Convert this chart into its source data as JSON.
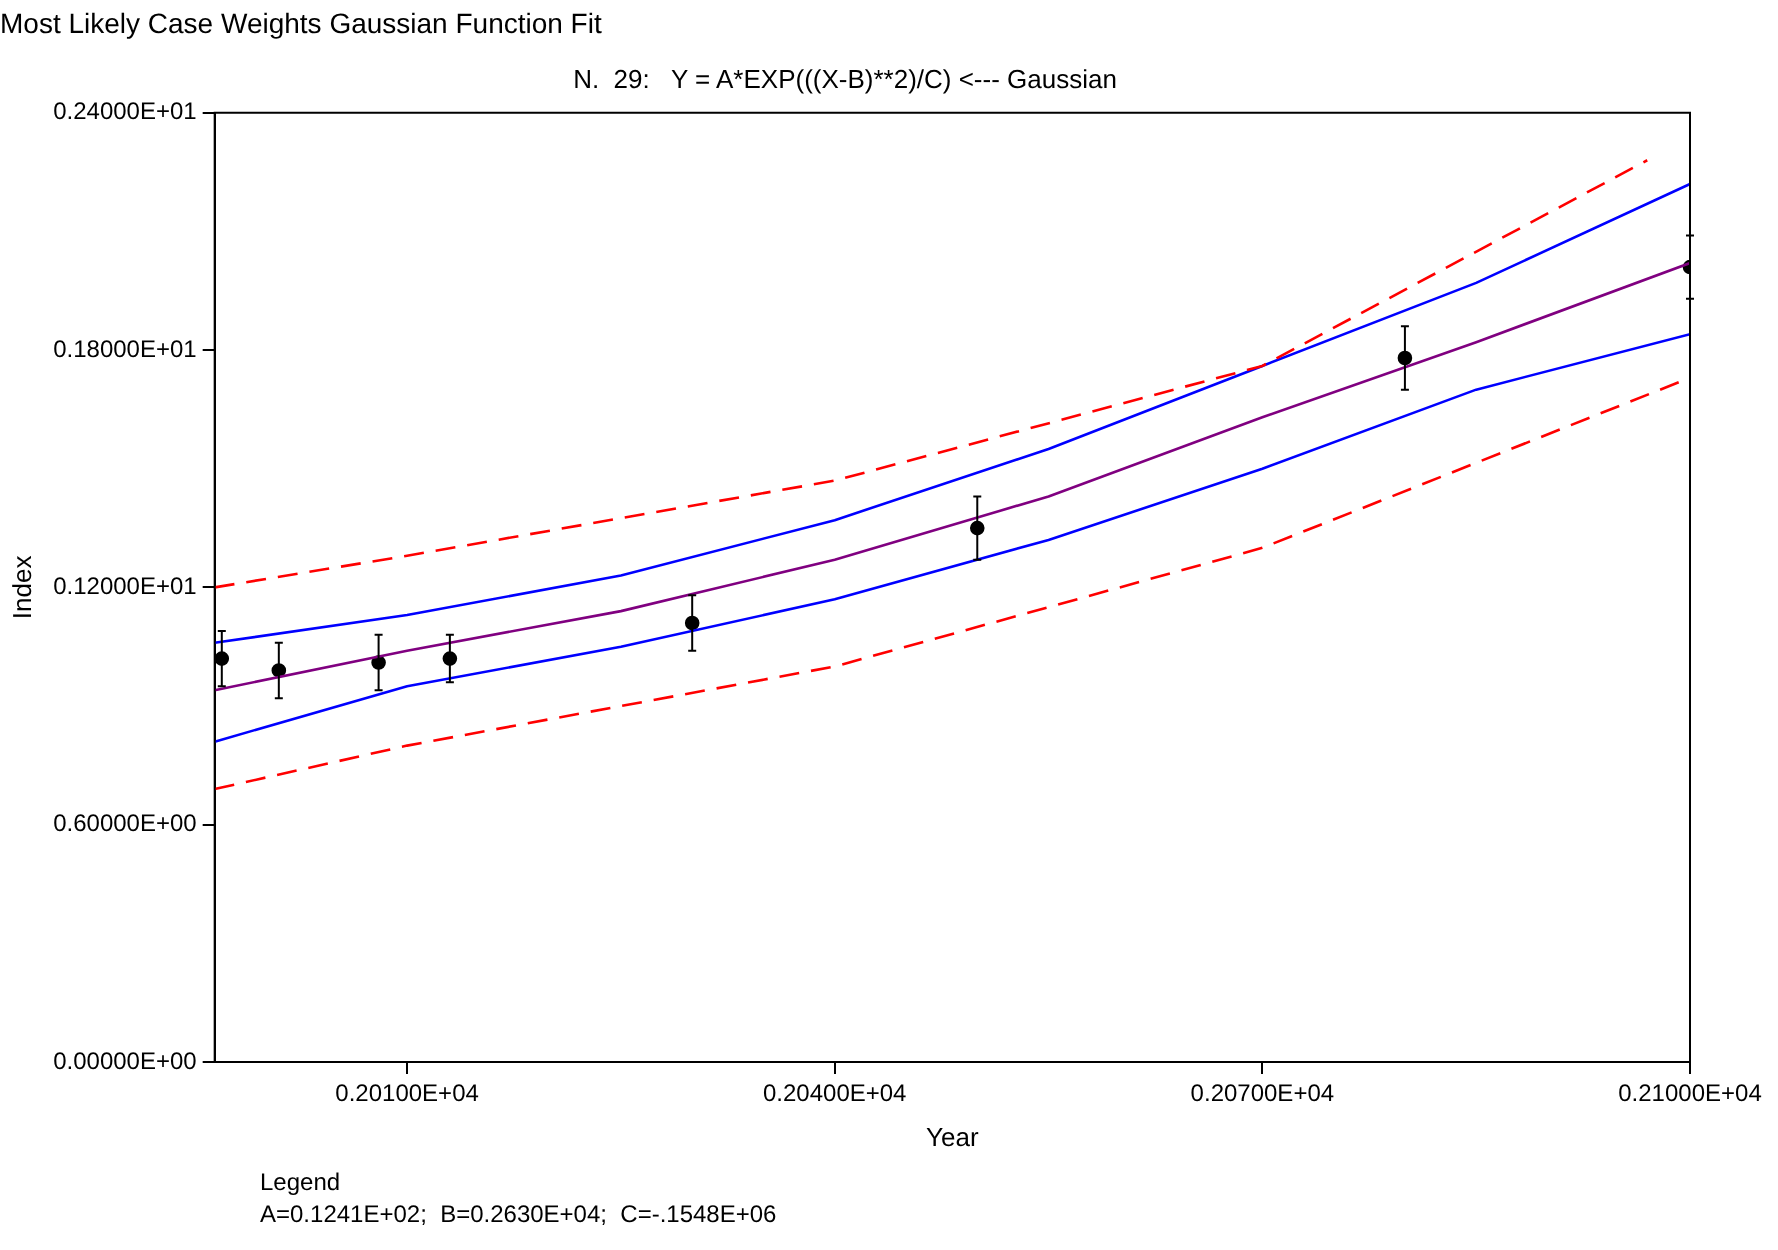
{
  "chart_data": {
    "type": "line",
    "title": "Most Likely Case Weights Gaussian Function Fit",
    "subtitle": "N.  29:   Y = A*EXP(((X-B)**2)/C) <--- Gaussian",
    "xlabel": "Year",
    "ylabel": "Index",
    "annotations": [
      "Legend",
      "A=0.1241E+02;  B=0.2630E+04;  C=-.1548E+06"
    ],
    "xlim": [
      1996.5,
      2100
    ],
    "xticks": [
      {
        "value": 2010,
        "label": "0.20100E+04"
      },
      {
        "value": 2040,
        "label": "0.20400E+04"
      },
      {
        "value": 2070,
        "label": "0.20700E+04"
      },
      {
        "value": 2100,
        "label": "0.21000E+04"
      }
    ],
    "ylim": [
      0,
      2.4
    ],
    "yticks": [
      {
        "value": 0,
        "label": "0.00000E+00"
      },
      {
        "value": 0.6,
        "label": "0.60000E+00"
      },
      {
        "value": 1.2,
        "label": "0.12000E+01"
      },
      {
        "value": 1.8,
        "label": "0.18000E+01"
      },
      {
        "value": 2.4,
        "label": "0.24000E+01"
      }
    ],
    "grid": false,
    "legend": false,
    "series": [
      {
        "color": "#ff0000",
        "line_style": "dashed",
        "marker": "none",
        "x": [
          1996.5,
          2010,
          2040,
          2070,
          2097
        ],
        "values": [
          1.2,
          1.28,
          1.47,
          1.76,
          2.28
        ]
      },
      {
        "color": "#ff0000",
        "line_style": "dashed",
        "marker": "none",
        "x": [
          1996.5,
          2010,
          2040,
          2070,
          2100
        ],
        "values": [
          0.69,
          0.8,
          1.0,
          1.3,
          1.73
        ]
      },
      {
        "color": "#0000ff",
        "line_style": "solid",
        "marker": "none",
        "x": [
          1996.5,
          2010,
          2025,
          2040,
          2055,
          2070,
          2085,
          2100
        ],
        "values": [
          1.06,
          1.13,
          1.23,
          1.37,
          1.55,
          1.76,
          1.97,
          2.22
        ]
      },
      {
        "color": "#0000ff",
        "line_style": "solid",
        "marker": "none",
        "x": [
          1996.5,
          2010,
          2025,
          2040,
          2055,
          2070,
          2085,
          2100
        ],
        "values": [
          0.81,
          0.95,
          1.05,
          1.17,
          1.32,
          1.5,
          1.7,
          1.84
        ]
      },
      {
        "color": "#800080",
        "line_style": "solid",
        "marker": "none",
        "x": [
          1996.5,
          2010,
          2025,
          2040,
          2055,
          2070,
          2085,
          2100
        ],
        "values": [
          0.94,
          1.04,
          1.14,
          1.27,
          1.43,
          1.63,
          1.82,
          2.02
        ]
      },
      {
        "type": "scatter",
        "color": "#000000",
        "marker": "circle",
        "x": [
          1997,
          2001,
          2008,
          2013,
          2030,
          2050,
          2080,
          2100
        ],
        "values": [
          1.02,
          0.99,
          1.01,
          1.02,
          1.11,
          1.35,
          1.78,
          2.01
        ],
        "errors": [
          0.07,
          0.07,
          0.07,
          0.06,
          0.07,
          0.08,
          0.08,
          0.08
        ]
      }
    ]
  }
}
